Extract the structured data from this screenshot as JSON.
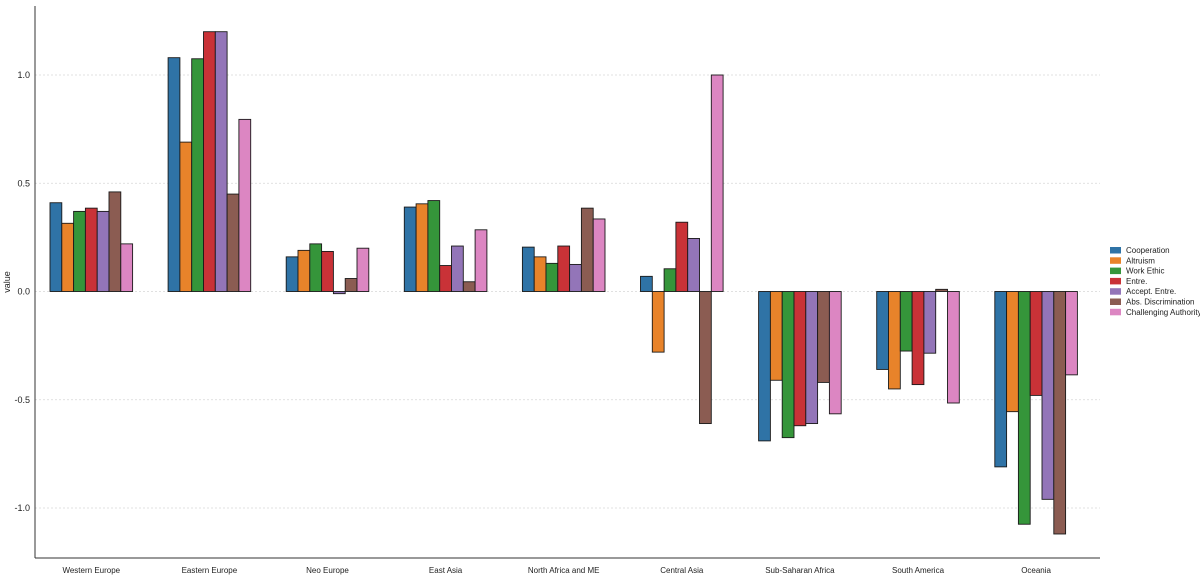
{
  "chart_data": {
    "type": "bar",
    "ylabel": "value",
    "xlabel": "",
    "ylim": [
      -1.25,
      1.32
    ],
    "yticks": [
      -1.0,
      -0.5,
      0.0,
      0.5,
      1.0
    ],
    "ytick_labels": [
      "-1.0",
      "-0.5",
      "0.0",
      "0.5",
      "1.0"
    ],
    "grid": "horizontal dotted",
    "legend_position": "right",
    "categories": [
      "Western Europe",
      "Eastern Europe",
      "Neo Europe",
      "East Asia",
      "North Africa and ME",
      "Central Asia",
      "Sub-Saharan Africa",
      "South America",
      "Oceania"
    ],
    "series": [
      {
        "name": "Cooperation",
        "color": "#2f73a6",
        "values": [
          0.41,
          1.08,
          0.16,
          0.39,
          0.205,
          0.07,
          -0.69,
          -0.36,
          -0.81
        ]
      },
      {
        "name": "Altruism",
        "color": "#e8832a",
        "values": [
          0.315,
          0.69,
          0.19,
          0.405,
          0.16,
          -0.28,
          -0.41,
          -0.45,
          -0.555
        ]
      },
      {
        "name": "Work Ethic",
        "color": "#35953a",
        "values": [
          0.37,
          1.075,
          0.22,
          0.42,
          0.13,
          0.105,
          -0.675,
          -0.275,
          -1.075
        ]
      },
      {
        "name": "Entre.",
        "color": "#c93237",
        "values": [
          0.385,
          1.2,
          0.185,
          0.12,
          0.21,
          0.32,
          -0.62,
          -0.43,
          -0.48
        ]
      },
      {
        "name": "Accept. Entre.",
        "color": "#9375b8",
        "values": [
          0.37,
          1.2,
          -0.01,
          0.21,
          0.125,
          0.245,
          -0.61,
          -0.285,
          -0.96
        ]
      },
      {
        "name": "Abs. Discrimination",
        "color": "#8b5c52",
        "values": [
          0.46,
          0.45,
          0.06,
          0.045,
          0.385,
          -0.61,
          -0.42,
          0.01,
          -1.12
        ]
      },
      {
        "name": "Challenging Authority",
        "color": "#dc86c2",
        "values": [
          0.22,
          0.795,
          0.2,
          0.285,
          0.335,
          1.0,
          -0.565,
          -0.515,
          -0.385
        ]
      }
    ]
  }
}
